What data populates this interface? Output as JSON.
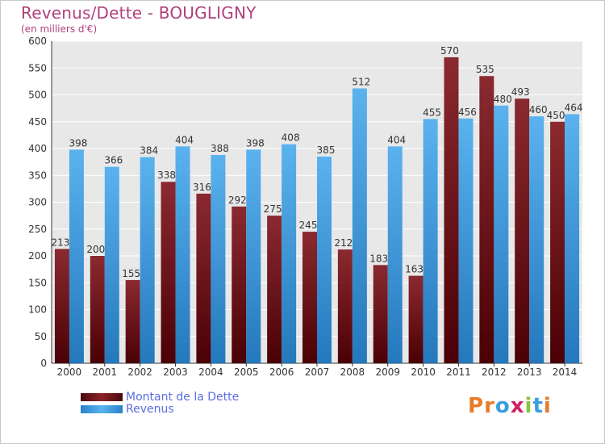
{
  "header": {
    "title": "Revenus/Dette - BOUGLIGNY",
    "subtitle": "(en milliers d'€)"
  },
  "legend": {
    "items": [
      {
        "label": "Montant de la Dette",
        "color": "#7b1a20"
      },
      {
        "label": "Revenus",
        "color": "#3a9ee0"
      }
    ]
  },
  "logo": {
    "letters": [
      "P",
      "r",
      "o",
      "x",
      "i",
      "t",
      "i"
    ],
    "colors": [
      "#e87a2a",
      "#e87a2a",
      "#3a9ee0",
      "#d02060",
      "#8ac23a",
      "#3a9ee0",
      "#e87a2a"
    ]
  },
  "chart_data": {
    "type": "bar",
    "title": "Revenus/Dette - BOUGLIGNY",
    "subtitle": "(en milliers d'€)",
    "categories": [
      "2000",
      "2001",
      "2002",
      "2003",
      "2004",
      "2005",
      "2006",
      "2007",
      "2008",
      "2009",
      "2010",
      "2011",
      "2012",
      "2013",
      "2014"
    ],
    "series": [
      {
        "name": "Montant de la Dette",
        "color": "#7b1a20",
        "values": [
          213,
          200,
          155,
          338,
          316,
          292,
          275,
          245,
          212,
          183,
          163,
          570,
          535,
          493,
          450
        ]
      },
      {
        "name": "Revenus",
        "color": "#3a9ee0",
        "values": [
          398,
          366,
          384,
          404,
          388,
          398,
          408,
          385,
          512,
          404,
          455,
          456,
          480,
          460,
          464
        ]
      }
    ],
    "yticks": [
      0,
      50,
      100,
      150,
      200,
      250,
      300,
      350,
      400,
      450,
      500,
      550,
      600
    ],
    "ylim": [
      0,
      600
    ],
    "grid": true,
    "legend_position": "bottom-left"
  }
}
